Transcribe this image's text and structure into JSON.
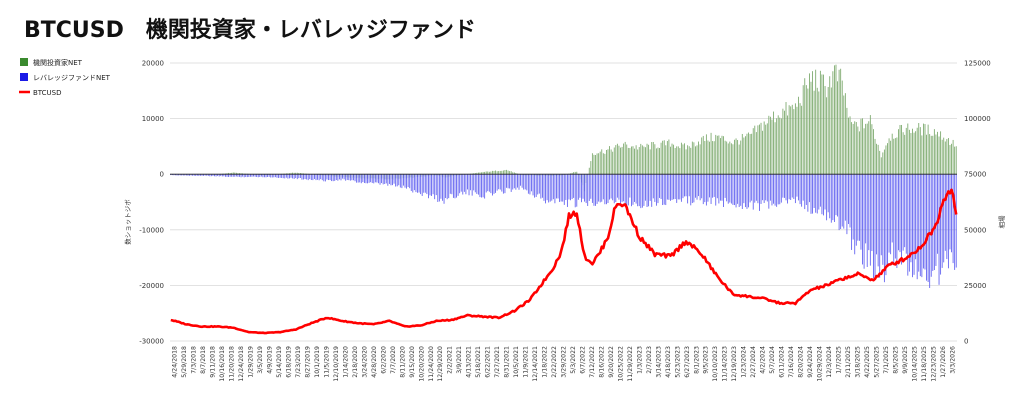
{
  "chart_data": {
    "type": "bar",
    "title": "BTCUSD　機関投資家・レバレッジファンド",
    "ylabel": "数ショットジボ",
    "y2label": "相場",
    "ylim": [
      -30000,
      20000
    ],
    "y2lim": [
      0,
      125000
    ],
    "y_ticks": [
      "20000",
      "10000",
      "0",
      "-10000",
      "-20000",
      "-30000"
    ],
    "y2_ticks": [
      "125000",
      "100000",
      "75000",
      "50000",
      "25000",
      "0"
    ],
    "grid": true,
    "legend_position": "top-left",
    "legend": [
      {
        "label": "機関投資家NET",
        "color": "#3a8a2e",
        "kind": "box"
      },
      {
        "label": "レバレッジファンドNET",
        "color": "#1a1ae6",
        "kind": "box"
      },
      {
        "label": "BTCUSD",
        "color": "#ff0000",
        "kind": "line"
      }
    ],
    "x_tick_labels": [
      "4/24/2018",
      "5/29/2018",
      "7/3/2018",
      "8/7/2018",
      "9/11/2018",
      "10/16/2018",
      "11/20/2018",
      "12/24/2018",
      "1/29/2019",
      "3/5/2019",
      "4/9/2019",
      "5/14/2019",
      "6/18/2019",
      "7/23/2019",
      "8/27/2019",
      "10/1/2019",
      "11/5/2019",
      "12/10/2019",
      "1/14/2020",
      "2/18/2020",
      "3/24/2020",
      "4/28/2020",
      "6/2/2020",
      "7/7/2020",
      "8/11/2020",
      "9/15/2020",
      "10/20/2020",
      "11/24/2020",
      "12/29/2020",
      "2/2/2021",
      "3/9/2021",
      "4/13/2021",
      "5/18/2021",
      "6/22/2021",
      "7/27/2021",
      "8/31/2021",
      "10/5/2021",
      "11/9/2021",
      "12/14/2021",
      "1/18/2022",
      "2/22/2022",
      "3/29/2022",
      "5/3/2022",
      "6/7/2022",
      "7/12/2022",
      "8/16/2022",
      "9/20/2022",
      "10/25/2022",
      "11/29/2022",
      "1/3/2023",
      "2/7/2023",
      "3/14/2023",
      "4/18/2023",
      "5/23/2023",
      "6/27/2023",
      "8/1/2023",
      "9/5/2023",
      "10/10/2023",
      "11/14/2023",
      "12/19/2023",
      "1/23/2024",
      "2/27/2024",
      "4/2/2024",
      "5/7/2024",
      "6/11/2024",
      "7/16/2024",
      "8/20/2024",
      "9/24/2024",
      "10/29/2024",
      "12/3/2024",
      "1/7/2025",
      "2/11/2025",
      "3/18/2025",
      "4/22/2025",
      "5/27/2025",
      "7/1/2025",
      "8/5/2025",
      "9/9/2025",
      "10/14/2025",
      "11/18/2025",
      "12/23/2025",
      "1/27/2026",
      "3/3/2026"
    ],
    "series": [
      {
        "name": "機関投資家NET",
        "color": "#3a8a2e",
        "axis": "left",
        "kind": "bar",
        "anchors": [
          [
            0,
            -100
          ],
          [
            30,
            0
          ],
          [
            40,
            300
          ],
          [
            60,
            -200
          ],
          [
            80,
            300
          ],
          [
            100,
            -300
          ],
          [
            120,
            -700
          ],
          [
            140,
            -1000
          ],
          [
            160,
            -500
          ],
          [
            170,
            -200
          ],
          [
            175,
            -600
          ],
          [
            180,
            -400
          ],
          [
            200,
            400
          ],
          [
            215,
            800
          ],
          [
            225,
            -200
          ],
          [
            240,
            -300
          ],
          [
            250,
            -300
          ],
          [
            260,
            500
          ],
          [
            265,
            -3000
          ],
          [
            270,
            4000
          ],
          [
            280,
            4500
          ],
          [
            290,
            5500
          ],
          [
            300,
            5000
          ],
          [
            320,
            5800
          ],
          [
            330,
            5000
          ],
          [
            340,
            6500
          ],
          [
            350,
            7000
          ],
          [
            360,
            6000
          ],
          [
            370,
            7000
          ],
          [
            380,
            9500
          ],
          [
            390,
            11500
          ],
          [
            400,
            12500
          ],
          [
            410,
            18000
          ],
          [
            420,
            16500
          ],
          [
            425,
            19000
          ],
          [
            430,
            17000
          ],
          [
            435,
            9500
          ],
          [
            440,
            9000
          ],
          [
            448,
            10000
          ],
          [
            455,
            3500
          ],
          [
            460,
            7000
          ],
          [
            470,
            8500
          ],
          [
            480,
            8500
          ],
          [
            490,
            8000
          ],
          [
            500,
            6000
          ],
          [
            503,
            5500
          ]
        ]
      },
      {
        "name": "レバレッジファンドNET",
        "color": "#1a1ae6",
        "axis": "left",
        "kind": "bar",
        "anchors": [
          [
            0,
            -200
          ],
          [
            20,
            -300
          ],
          [
            40,
            -500
          ],
          [
            60,
            -500
          ],
          [
            80,
            -800
          ],
          [
            100,
            -1200
          ],
          [
            110,
            -1000
          ],
          [
            120,
            -1500
          ],
          [
            130,
            -1800
          ],
          [
            140,
            -2000
          ],
          [
            150,
            -2500
          ],
          [
            160,
            -3500
          ],
          [
            170,
            -4500
          ],
          [
            175,
            -5000
          ],
          [
            180,
            -4000
          ],
          [
            190,
            -3500
          ],
          [
            200,
            -4000
          ],
          [
            215,
            -3000
          ],
          [
            225,
            -2500
          ],
          [
            240,
            -5000
          ],
          [
            260,
            -5500
          ],
          [
            275,
            -5000
          ],
          [
            300,
            -5500
          ],
          [
            320,
            -5000
          ],
          [
            340,
            -5000
          ],
          [
            360,
            -5500
          ],
          [
            380,
            -6000
          ],
          [
            390,
            -5500
          ],
          [
            400,
            -4800
          ],
          [
            410,
            -6500
          ],
          [
            420,
            -8000
          ],
          [
            430,
            -9500
          ],
          [
            440,
            -14000
          ],
          [
            450,
            -17000
          ],
          [
            458,
            -19000
          ],
          [
            462,
            -15000
          ],
          [
            470,
            -16500
          ],
          [
            480,
            -19000
          ],
          [
            490,
            -18500
          ],
          [
            500,
            -16000
          ],
          [
            503,
            -15500
          ]
        ]
      },
      {
        "name": "BTCUSD",
        "color": "#ff0000",
        "axis": "right",
        "kind": "line",
        "anchors": [
          [
            0,
            9500
          ],
          [
            10,
            7500
          ],
          [
            20,
            6500
          ],
          [
            30,
            6500
          ],
          [
            40,
            6000
          ],
          [
            50,
            4000
          ],
          [
            60,
            3600
          ],
          [
            70,
            4000
          ],
          [
            80,
            5200
          ],
          [
            90,
            8000
          ],
          [
            100,
            10500
          ],
          [
            110,
            9000
          ],
          [
            120,
            8000
          ],
          [
            130,
            7500
          ],
          [
            140,
            9000
          ],
          [
            150,
            6500
          ],
          [
            160,
            7000
          ],
          [
            170,
            9000
          ],
          [
            180,
            9500
          ],
          [
            190,
            11500
          ],
          [
            200,
            11000
          ],
          [
            210,
            10500
          ],
          [
            220,
            13500
          ],
          [
            230,
            18500
          ],
          [
            240,
            28000
          ],
          [
            245,
            33000
          ],
          [
            250,
            40000
          ],
          [
            255,
            56000
          ],
          [
            260,
            58000
          ],
          [
            265,
            38000
          ],
          [
            270,
            35000
          ],
          [
            275,
            40000
          ],
          [
            280,
            47000
          ],
          [
            285,
            61000
          ],
          [
            290,
            62000
          ],
          [
            295,
            55000
          ],
          [
            300,
            47000
          ],
          [
            310,
            39000
          ],
          [
            320,
            38000
          ],
          [
            330,
            45000
          ],
          [
            340,
            39000
          ],
          [
            350,
            29000
          ],
          [
            360,
            21000
          ],
          [
            370,
            20000
          ],
          [
            380,
            19000
          ],
          [
            390,
            17000
          ],
          [
            400,
            17000
          ],
          [
            410,
            23000
          ],
          [
            420,
            25000
          ],
          [
            430,
            28000
          ],
          [
            440,
            30000
          ],
          [
            450,
            27500
          ],
          [
            460,
            34000
          ],
          [
            470,
            37000
          ],
          [
            480,
            42000
          ],
          [
            490,
            52000
          ],
          [
            495,
            64000
          ],
          [
            500,
            69000
          ],
          [
            503,
            57000
          ]
        ]
      }
    ]
  }
}
